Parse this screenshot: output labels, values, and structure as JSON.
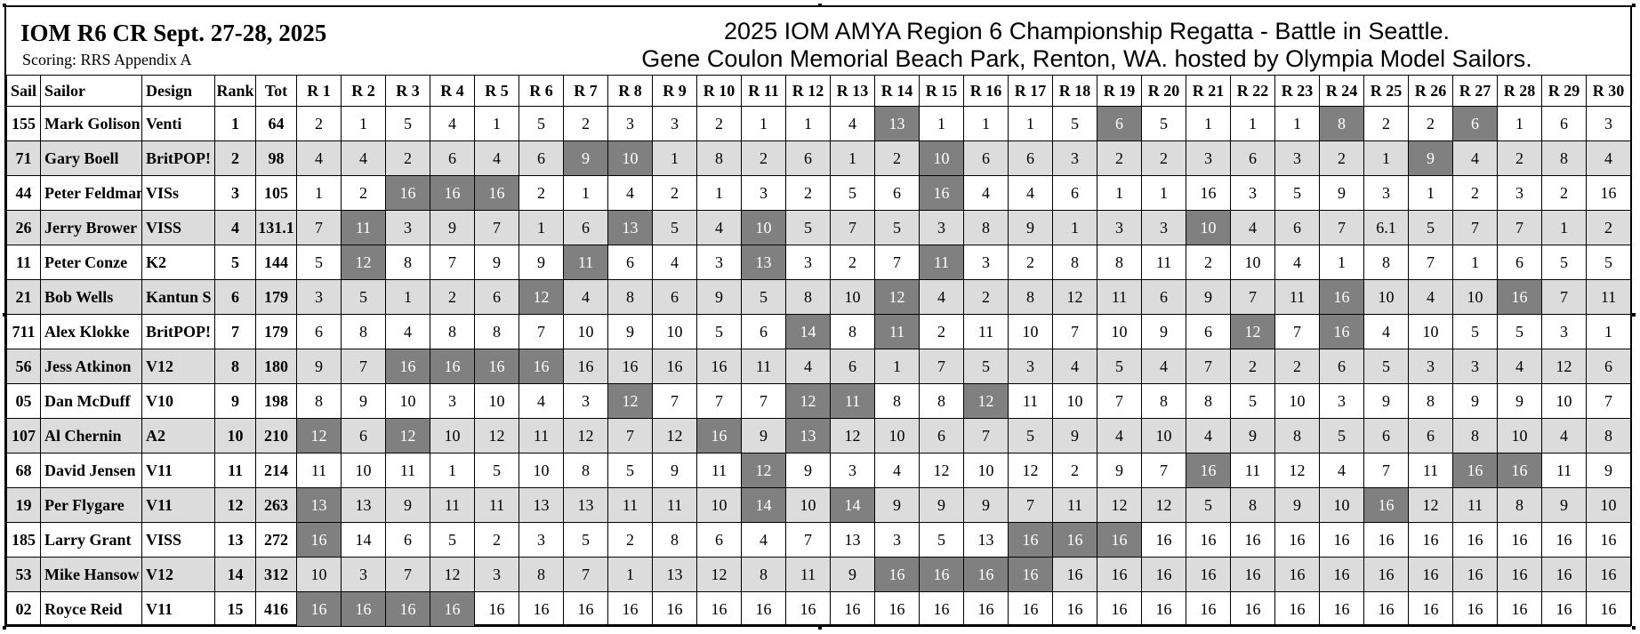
{
  "header": {
    "event_title": "IOM R6 CR Sept. 27-28, 2025",
    "scoring": "Scoring: RRS Appendix A",
    "regatta_line1": "2025 IOM AMYA Region 6 Championship Regatta - Battle in Seattle.",
    "regatta_line2": "Gene Coulon Memorial Beach Park, Renton, WA. hosted by Olympia Model Sailors."
  },
  "columns": [
    "Sail",
    "Sailor",
    "Design",
    "Rank",
    "Tot",
    "R 1",
    "R 2",
    "R 3",
    "R 4",
    "R 5",
    "R 6",
    "R 7",
    "R 8",
    "R 9",
    "R 10",
    "R 11",
    "R 12",
    "R 13",
    "R 14",
    "R 15",
    "R 16",
    "R 17",
    "R 18",
    "R 19",
    "R 20",
    "R 21",
    "R 22",
    "R 23",
    "R 24",
    "R 25",
    "R 26",
    "R 27",
    "R 28",
    "R 29",
    "R 30"
  ],
  "colors": {
    "shaded_row": "#dcdcdc",
    "discard_cell": "#808080",
    "discard_text": "#ffffff"
  },
  "rows": [
    {
      "sail": "155",
      "sailor": "Mark Golison",
      "design": "Venti",
      "rank": "1",
      "tot": "64",
      "races": [
        "2",
        "1",
        "5",
        "4",
        "1",
        "5",
        "2",
        "3",
        "3",
        "2",
        "1",
        "1",
        "4",
        "13",
        "1",
        "1",
        "1",
        "5",
        "6",
        "5",
        "1",
        "1",
        "1",
        "8",
        "2",
        "2",
        "6",
        "1",
        "6",
        "3"
      ],
      "drops": [
        14,
        19,
        24,
        27
      ]
    },
    {
      "sail": "71",
      "sailor": "Gary Boell",
      "design": "BritPOP!",
      "rank": "2",
      "tot": "98",
      "races": [
        "4",
        "4",
        "2",
        "6",
        "4",
        "6",
        "9",
        "10",
        "1",
        "8",
        "2",
        "6",
        "1",
        "2",
        "10",
        "6",
        "6",
        "3",
        "2",
        "2",
        "3",
        "6",
        "3",
        "2",
        "1",
        "9",
        "4",
        "2",
        "8",
        "4"
      ],
      "drops": [
        7,
        8,
        15,
        26
      ]
    },
    {
      "sail": "44",
      "sailor": "Peter Feldman",
      "design": "VISs",
      "rank": "3",
      "tot": "105",
      "races": [
        "1",
        "2",
        "16",
        "16",
        "16",
        "2",
        "1",
        "4",
        "2",
        "1",
        "3",
        "2",
        "5",
        "6",
        "16",
        "4",
        "4",
        "6",
        "1",
        "1",
        "16",
        "3",
        "5",
        "9",
        "3",
        "1",
        "2",
        "3",
        "2",
        "16"
      ],
      "drops": [
        3,
        4,
        5,
        15
      ]
    },
    {
      "sail": "26",
      "sailor": "Jerry Brower",
      "design": "VISS",
      "rank": "4",
      "tot": "131.1",
      "races": [
        "7",
        "11",
        "3",
        "9",
        "7",
        "1",
        "6",
        "13",
        "5",
        "4",
        "10",
        "5",
        "7",
        "5",
        "3",
        "8",
        "9",
        "1",
        "3",
        "3",
        "10",
        "4",
        "6",
        "7",
        "6.1",
        "5",
        "7",
        "7",
        "1",
        "2"
      ],
      "drops": [
        2,
        8,
        11,
        21
      ]
    },
    {
      "sail": "11",
      "sailor": "Peter Conze",
      "design": "K2",
      "rank": "5",
      "tot": "144",
      "races": [
        "5",
        "12",
        "8",
        "7",
        "9",
        "9",
        "11",
        "6",
        "4",
        "3",
        "13",
        "3",
        "2",
        "7",
        "11",
        "3",
        "2",
        "8",
        "8",
        "11",
        "2",
        "10",
        "4",
        "1",
        "8",
        "7",
        "1",
        "6",
        "5",
        "5"
      ],
      "drops": [
        2,
        7,
        11,
        15
      ]
    },
    {
      "sail": "21",
      "sailor": "Bob Wells",
      "design": "Kantun S",
      "rank": "6",
      "tot": "179",
      "races": [
        "3",
        "5",
        "1",
        "2",
        "6",
        "12",
        "4",
        "8",
        "6",
        "9",
        "5",
        "8",
        "10",
        "12",
        "4",
        "2",
        "8",
        "12",
        "11",
        "6",
        "9",
        "7",
        "11",
        "16",
        "10",
        "4",
        "10",
        "16",
        "7",
        "11"
      ],
      "drops": [
        6,
        14,
        24,
        28
      ]
    },
    {
      "sail": "711",
      "sailor": "Alex Klokke",
      "design": "BritPOP!",
      "rank": "7",
      "tot": "179",
      "races": [
        "6",
        "8",
        "4",
        "8",
        "8",
        "7",
        "10",
        "9",
        "10",
        "5",
        "6",
        "14",
        "8",
        "11",
        "2",
        "11",
        "10",
        "7",
        "10",
        "9",
        "6",
        "12",
        "7",
        "16",
        "4",
        "10",
        "5",
        "5",
        "3",
        "1"
      ],
      "drops": [
        12,
        14,
        22,
        24
      ]
    },
    {
      "sail": "56",
      "sailor": "Jess Atkinon",
      "design": "V12",
      "rank": "8",
      "tot": "180",
      "races": [
        "9",
        "7",
        "16",
        "16",
        "16",
        "16",
        "16",
        "16",
        "16",
        "16",
        "11",
        "4",
        "6",
        "1",
        "7",
        "5",
        "3",
        "4",
        "5",
        "4",
        "7",
        "2",
        "2",
        "6",
        "5",
        "3",
        "3",
        "4",
        "12",
        "6"
      ],
      "drops": [
        3,
        4,
        5,
        6
      ]
    },
    {
      "sail": "05",
      "sailor": "Dan McDuff",
      "design": "V10",
      "rank": "9",
      "tot": "198",
      "races": [
        "8",
        "9",
        "10",
        "3",
        "10",
        "4",
        "3",
        "12",
        "7",
        "7",
        "7",
        "12",
        "11",
        "8",
        "8",
        "12",
        "11",
        "10",
        "7",
        "8",
        "8",
        "5",
        "10",
        "3",
        "9",
        "8",
        "9",
        "9",
        "10",
        "7"
      ],
      "drops": [
        8,
        12,
        13,
        16
      ]
    },
    {
      "sail": "107",
      "sailor": "Al Chernin",
      "design": "A2",
      "rank": "10",
      "tot": "210",
      "races": [
        "12",
        "6",
        "12",
        "10",
        "12",
        "11",
        "12",
        "7",
        "12",
        "16",
        "9",
        "13",
        "12",
        "10",
        "6",
        "7",
        "5",
        "9",
        "4",
        "10",
        "4",
        "9",
        "8",
        "5",
        "6",
        "6",
        "8",
        "10",
        "4",
        "8"
      ],
      "drops": [
        1,
        3,
        10,
        12
      ]
    },
    {
      "sail": "68",
      "sailor": "David Jensen",
      "design": "V11",
      "rank": "11",
      "tot": "214",
      "races": [
        "11",
        "10",
        "11",
        "1",
        "5",
        "10",
        "8",
        "5",
        "9",
        "11",
        "12",
        "9",
        "3",
        "4",
        "12",
        "10",
        "12",
        "2",
        "9",
        "7",
        "16",
        "11",
        "12",
        "4",
        "7",
        "11",
        "16",
        "16",
        "11",
        "9"
      ],
      "drops": [
        11,
        21,
        27,
        28
      ]
    },
    {
      "sail": "19",
      "sailor": "Per Flygare",
      "design": "V11",
      "rank": "12",
      "tot": "263",
      "races": [
        "13",
        "13",
        "9",
        "11",
        "11",
        "13",
        "13",
        "11",
        "11",
        "10",
        "14",
        "10",
        "14",
        "9",
        "9",
        "9",
        "7",
        "11",
        "12",
        "12",
        "5",
        "8",
        "9",
        "10",
        "16",
        "12",
        "11",
        "8",
        "9",
        "10"
      ],
      "drops": [
        1,
        11,
        13,
        25
      ]
    },
    {
      "sail": "185",
      "sailor": "Larry Grant",
      "design": "VISS",
      "rank": "13",
      "tot": "272",
      "races": [
        "16",
        "14",
        "6",
        "5",
        "2",
        "3",
        "5",
        "2",
        "8",
        "6",
        "4",
        "7",
        "13",
        "3",
        "5",
        "13",
        "16",
        "16",
        "16",
        "16",
        "16",
        "16",
        "16",
        "16",
        "16",
        "16",
        "16",
        "16",
        "16",
        "16"
      ],
      "drops": [
        1,
        17,
        18,
        19
      ]
    },
    {
      "sail": "53",
      "sailor": "Mike Hansow",
      "design": "V12",
      "rank": "14",
      "tot": "312",
      "races": [
        "10",
        "3",
        "7",
        "12",
        "3",
        "8",
        "7",
        "1",
        "13",
        "12",
        "8",
        "11",
        "9",
        "16",
        "16",
        "16",
        "16",
        "16",
        "16",
        "16",
        "16",
        "16",
        "16",
        "16",
        "16",
        "16",
        "16",
        "16",
        "16",
        "16"
      ],
      "drops": [
        14,
        15,
        16,
        17
      ]
    },
    {
      "sail": "02",
      "sailor": "Royce Reid",
      "design": "V11",
      "rank": "15",
      "tot": "416",
      "races": [
        "16",
        "16",
        "16",
        "16",
        "16",
        "16",
        "16",
        "16",
        "16",
        "16",
        "16",
        "16",
        "16",
        "16",
        "16",
        "16",
        "16",
        "16",
        "16",
        "16",
        "16",
        "16",
        "16",
        "16",
        "16",
        "16",
        "16",
        "16",
        "16",
        "16"
      ],
      "drops": [
        1,
        2,
        3,
        4
      ]
    }
  ]
}
